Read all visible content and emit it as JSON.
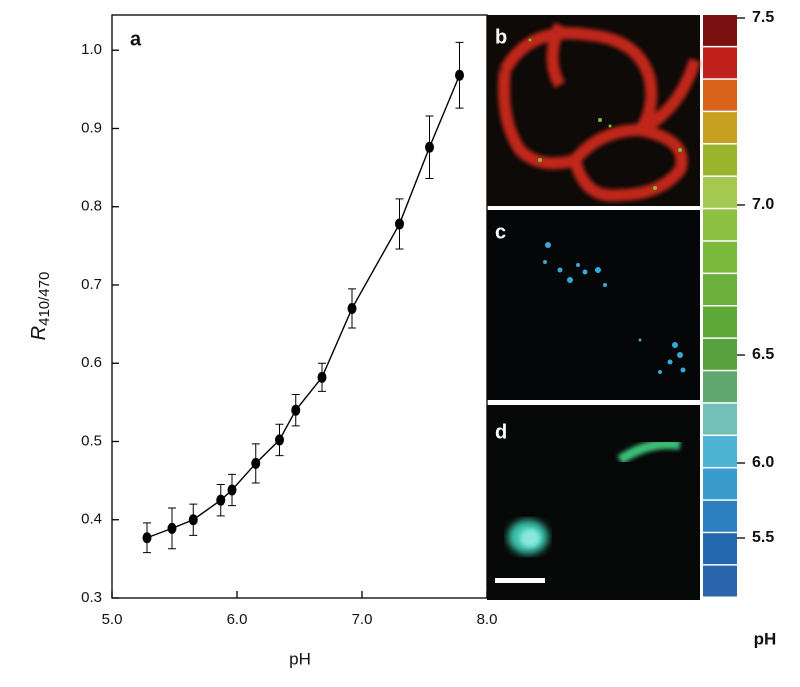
{
  "chart_data": {
    "type": "line",
    "panel_labels": [
      "a",
      "b",
      "c",
      "d"
    ],
    "x_label": "pH",
    "y_label": "R",
    "y_label_subscript": "410/470",
    "x": [
      5.28,
      5.48,
      5.65,
      5.87,
      5.96,
      6.15,
      6.34,
      6.47,
      6.68,
      6.92,
      7.3,
      7.54,
      7.78
    ],
    "series": [
      {
        "color": "#000000",
        "values": [
          0.377,
          0.389,
          0.4,
          0.425,
          0.438,
          0.472,
          0.502,
          0.54,
          0.582,
          0.67,
          0.778,
          0.876,
          0.968
        ],
        "errors": [
          0.019,
          0.026,
          0.02,
          0.02,
          0.02,
          0.025,
          0.02,
          0.02,
          0.018,
          0.025,
          0.032,
          0.04,
          0.042
        ]
      }
    ],
    "xlim": [
      5.0,
      8.0
    ],
    "xticks": [
      {
        "value": 5,
        "label": "5.0"
      },
      {
        "value": 6,
        "label": "6.0"
      },
      {
        "value": 7,
        "label": "7.0"
      },
      {
        "value": 8,
        "label": "8.0"
      }
    ],
    "ylim": [
      0.3,
      1.045
    ],
    "yticks": [
      0.3,
      0.4,
      0.5,
      0.6,
      0.7,
      0.8,
      0.9,
      {
        "value": 1,
        "label": "1.0"
      }
    ],
    "colorbar": {
      "label": "pH",
      "ticks": [
        7.5,
        {
          "value": 7,
          "label": "7.0"
        },
        6.5,
        {
          "value": 6,
          "label": "6.0"
        },
        5.5
      ]
    }
  }
}
